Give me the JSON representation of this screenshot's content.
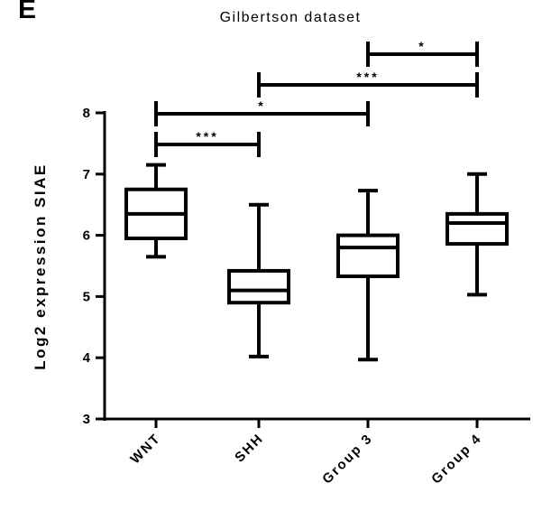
{
  "panel_letter": "E",
  "chart_data": {
    "type": "box",
    "title": "Gilbertson dataset",
    "xlabel": "",
    "ylabel": "Log2 expression SIAE",
    "ylim": [
      3,
      8
    ],
    "yticks": [
      3,
      4,
      5,
      6,
      7,
      8
    ],
    "categories": [
      "WNT",
      "SHH",
      "Group 3",
      "Group 4"
    ],
    "boxes": [
      {
        "category": "WNT",
        "min": 5.65,
        "q1": 5.95,
        "median": 6.35,
        "q3": 6.75,
        "max": 7.15
      },
      {
        "category": "SHH",
        "min": 4.02,
        "q1": 4.9,
        "median": 5.1,
        "q3": 5.42,
        "max": 6.5
      },
      {
        "category": "Group 3",
        "min": 3.97,
        "q1": 5.33,
        "median": 5.8,
        "q3": 6.0,
        "max": 6.73
      },
      {
        "category": "Group 4",
        "min": 5.03,
        "q1": 5.86,
        "median": 6.2,
        "q3": 6.35,
        "max": 7.0
      }
    ],
    "significance": [
      {
        "from": "WNT",
        "to": "SHH",
        "label": "***"
      },
      {
        "from": "WNT",
        "to": "Group 3",
        "label": "*"
      },
      {
        "from": "SHH",
        "to": "Group 4",
        "label": "***"
      },
      {
        "from": "Group 3",
        "to": "Group 4",
        "label": "*"
      }
    ]
  }
}
